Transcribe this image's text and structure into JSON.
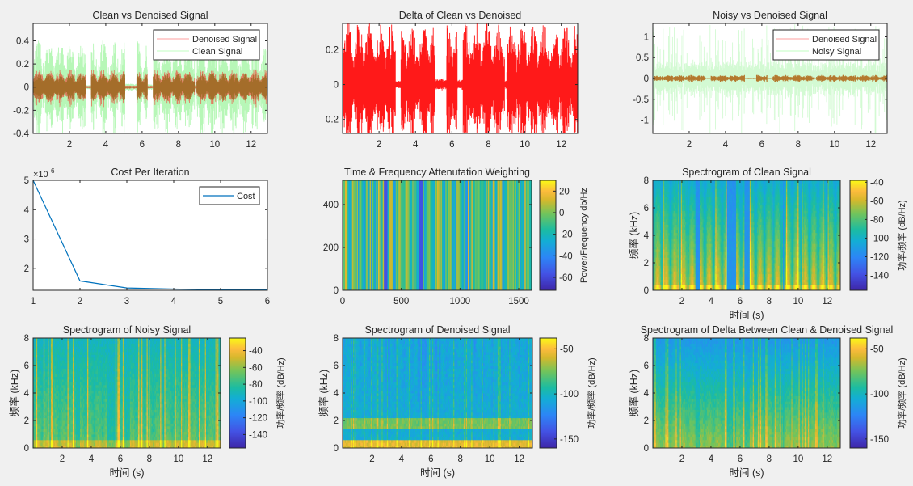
{
  "figure": {
    "background": "#f0f0f0"
  },
  "chart_data": [
    {
      "id": "clean-vs-denoised",
      "type": "line",
      "title": "Clean vs Denoised Signal",
      "xlabel": "",
      "ylabel": "",
      "xlim": [
        0,
        12.9
      ],
      "ylim": [
        -0.4,
        0.55
      ],
      "xticks": [
        2,
        4,
        6,
        8,
        10,
        12
      ],
      "yticks": [
        -0.4,
        -0.2,
        0,
        0.2,
        0.4
      ],
      "ytick_labels": [
        "-0.4",
        "-0.2",
        "0",
        "0.2",
        "0.4"
      ],
      "legend": {
        "placement": "top-right",
        "entries": [
          {
            "label": "Denoised Signal",
            "color": "#ff0000",
            "alpha": 0.3
          },
          {
            "label": "Clean Signal",
            "color": "#00ff00",
            "alpha": 0.2
          }
        ]
      },
      "series": [
        {
          "name": "Denoised Signal",
          "color": "#ff0000",
          "kind": "waveform",
          "amplitude_envelope_peak": 0.15
        },
        {
          "name": "Clean Signal",
          "color": "#00ff00",
          "kind": "waveform",
          "amplitude_envelope_peak": 0.4
        }
      ]
    },
    {
      "id": "delta-clean-denoised",
      "type": "line",
      "title": "Delta of Clean vs Denoised",
      "xlim": [
        0,
        12.9
      ],
      "ylim": [
        -0.28,
        0.35
      ],
      "xticks": [
        2,
        4,
        6,
        8,
        10,
        12
      ],
      "yticks": [
        -0.2,
        0,
        0.2
      ],
      "ytick_labels": [
        "-0.2",
        "0",
        "0.2"
      ],
      "series": [
        {
          "name": "Delta",
          "color": "#ff0000",
          "kind": "waveform",
          "amplitude_envelope_peak": 0.35
        }
      ]
    },
    {
      "id": "noisy-vs-denoised",
      "type": "line",
      "title": "Noisy vs Denoised Signal",
      "xlim": [
        0,
        12.9
      ],
      "ylim": [
        -1.32,
        1.32
      ],
      "xticks": [
        2,
        4,
        6,
        8,
        10,
        12
      ],
      "yticks": [
        -1,
        -0.5,
        0,
        0.5,
        1
      ],
      "ytick_labels": [
        "-1",
        "-0.5",
        "0",
        "0.5",
        "1"
      ],
      "legend": {
        "placement": "top-right",
        "entries": [
          {
            "label": "Denoised Signal",
            "color": "#ff0000",
            "alpha": 0.3
          },
          {
            "label": "Noisy Signal",
            "color": "#00ff00",
            "alpha": 0.2
          }
        ]
      },
      "series": [
        {
          "name": "Denoised Signal",
          "color": "#b5651d",
          "kind": "waveform",
          "amplitude_envelope_peak": 0.08
        },
        {
          "name": "Noisy Signal",
          "color": "#00ff00",
          "kind": "waveform",
          "amplitude_envelope_peak": 1.3
        }
      ]
    },
    {
      "id": "cost-per-iteration",
      "type": "line",
      "title": "Cost Per Iteration",
      "xlim": [
        1,
        6
      ],
      "ylim": [
        1.25,
        5.0
      ],
      "y_multiplier_label": "×10",
      "y_multiplier_exp": "6",
      "xticks": [
        1,
        2,
        3,
        4,
        5,
        6
      ],
      "yticks": [
        2,
        3,
        4,
        5
      ],
      "legend": {
        "placement": "top-right",
        "entries": [
          {
            "label": "Cost",
            "color": "#0072bd"
          }
        ]
      },
      "series": [
        {
          "name": "Cost",
          "color": "#0072bd",
          "x": [
            1,
            2,
            3,
            4,
            5,
            6
          ],
          "values": [
            5.0,
            1.57,
            1.33,
            1.29,
            1.27,
            1.26
          ]
        }
      ]
    },
    {
      "id": "attenuation-weighting",
      "type": "heatmap",
      "title": "Time & Frequency Attenutation Weighting",
      "xlim": [
        0,
        1610
      ],
      "ylim": [
        0,
        513
      ],
      "xticks": [
        0,
        500,
        1000,
        1500
      ],
      "yticks": [
        0,
        200,
        400
      ],
      "colorbar": {
        "label": "Power/Frequency db/Hz",
        "range": [
          -72,
          30
        ],
        "ticks": [
          -60,
          -40,
          -20,
          0,
          20
        ]
      },
      "pattern": "vertical-stripes"
    },
    {
      "id": "spec-clean",
      "type": "heatmap",
      "title": "Spectrogram of Clean Signal",
      "xlabel": "时间 (s)",
      "ylabel": "频率 (kHz)",
      "xlim": [
        0,
        12.9
      ],
      "ylim": [
        0,
        8
      ],
      "xticks": [
        2,
        4,
        6,
        8,
        10,
        12
      ],
      "yticks": [
        0,
        2,
        4,
        6,
        8
      ],
      "colorbar": {
        "label": "功率/频率 (dB/Hz)",
        "range": [
          -156,
          -38
        ],
        "ticks": [
          -140,
          -120,
          -100,
          -80,
          -60,
          -40
        ]
      },
      "pattern": "speech-clean"
    },
    {
      "id": "spec-noisy",
      "type": "heatmap",
      "title": "Spectrogram of Noisy Signal",
      "xlabel": "时间 (s)",
      "ylabel": "频率 (kHz)",
      "xlim": [
        0,
        12.9
      ],
      "ylim": [
        0,
        8
      ],
      "xticks": [
        2,
        4,
        6,
        8,
        10,
        12
      ],
      "yticks": [
        0,
        2,
        4,
        6,
        8
      ],
      "colorbar": {
        "label": "功率/频率 (dB/Hz)",
        "range": [
          -156,
          -25
        ],
        "ticks": [
          -140,
          -120,
          -100,
          -80,
          -60,
          -40
        ]
      },
      "pattern": "speech-noisy"
    },
    {
      "id": "spec-denoised",
      "type": "heatmap",
      "title": "Spectrogram of Denoised Signal",
      "xlabel": "时间 (s)",
      "ylabel": "频率 (kHz)",
      "xlim": [
        0,
        12.9
      ],
      "ylim": [
        0,
        8
      ],
      "xticks": [
        2,
        4,
        6,
        8,
        10,
        12
      ],
      "yticks": [
        0,
        2,
        4,
        6,
        8
      ],
      "colorbar": {
        "label": "功率/频率 (dB/Hz)",
        "range": [
          -160,
          -38
        ],
        "ticks": [
          -150,
          -100,
          -50
        ]
      },
      "pattern": "speech-denoised"
    },
    {
      "id": "spec-delta",
      "type": "heatmap",
      "title": "Spectrogram of Delta Between Clean & Denoised Signal",
      "xlabel": "时间 (s)",
      "ylabel": "频率 (kHz)",
      "xlim": [
        0,
        12.9
      ],
      "ylim": [
        0,
        8
      ],
      "xticks": [
        2,
        4,
        6,
        8,
        10,
        12
      ],
      "yticks": [
        0,
        2,
        4,
        6,
        8
      ],
      "colorbar": {
        "label": "功率/频率 (dB/Hz)",
        "range": [
          -160,
          -38
        ],
        "ticks": [
          -150,
          -100,
          -50
        ]
      },
      "pattern": "speech-delta"
    }
  ]
}
